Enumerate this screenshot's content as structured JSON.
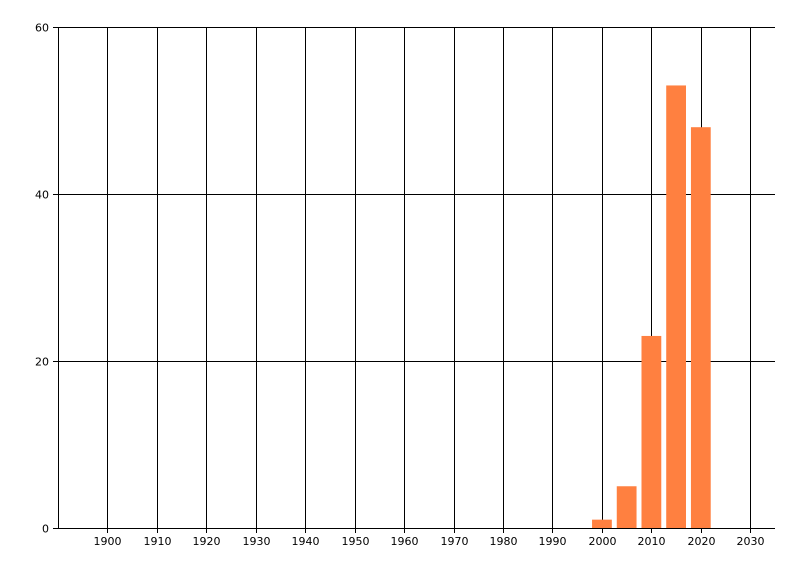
{
  "chart_data": {
    "type": "bar",
    "title": "",
    "xlabel": "",
    "ylabel": "",
    "x": [
      2000,
      2005,
      2010,
      2015,
      2020
    ],
    "values": [
      1,
      5,
      23,
      53,
      48
    ],
    "bar_width_years": 4,
    "xlim": [
      1890,
      2035
    ],
    "ylim": [
      0,
      60
    ],
    "x_ticks": [
      "1900",
      "1910",
      "1920",
      "1930",
      "1940",
      "1950",
      "1960",
      "1970",
      "1980",
      "1990",
      "2000",
      "2010",
      "2020",
      "2030"
    ],
    "y_ticks": [
      "0",
      "20",
      "40",
      "60"
    ],
    "grid": true,
    "bar_color": "#ff8040",
    "grid_color": "#000000"
  }
}
